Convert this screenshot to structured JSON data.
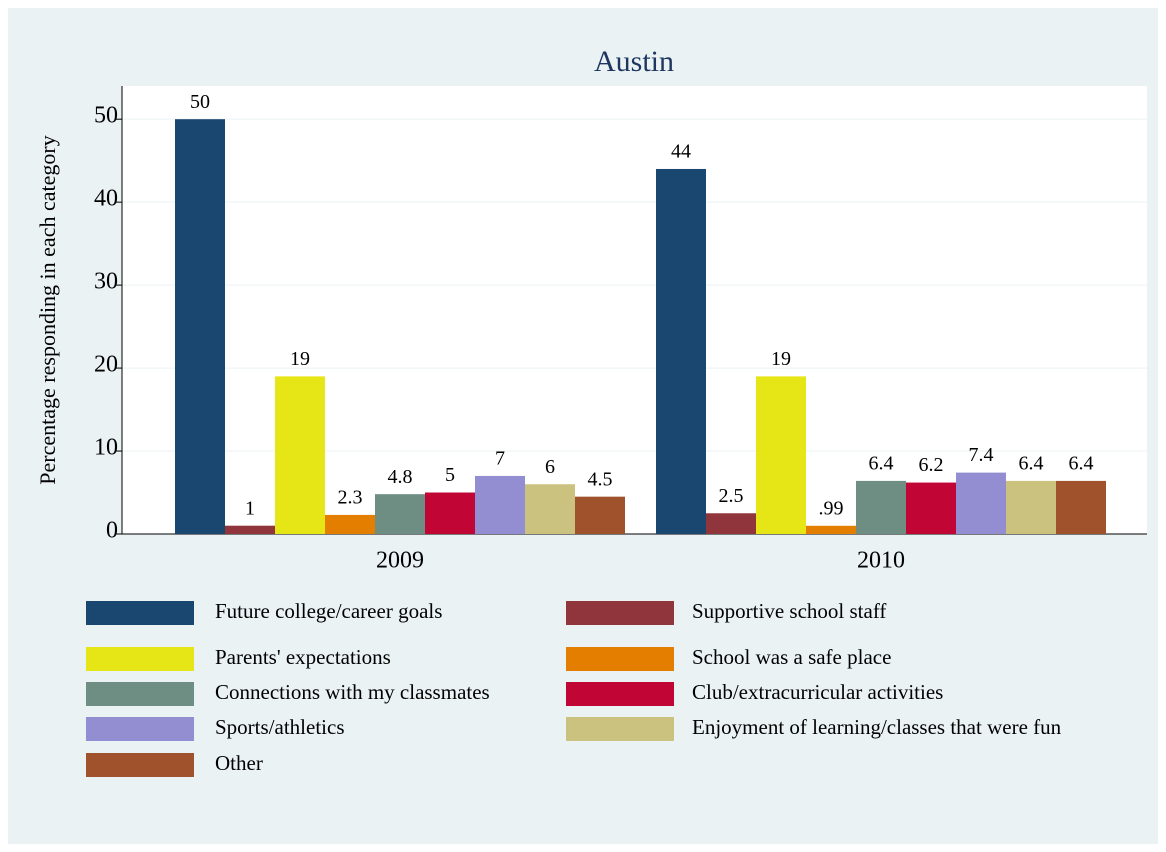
{
  "chart_data": {
    "type": "bar",
    "title": "Austin",
    "y_label": "Percentage responding in each category",
    "categories": [
      "2009",
      "2010"
    ],
    "series": [
      {
        "name": "Future college/career goals",
        "color": "#1a476f",
        "values": [
          50,
          44
        ]
      },
      {
        "name": "Supportive school staff",
        "color": "#90353b",
        "values": [
          1,
          2.5
        ]
      },
      {
        "name": "Parents' expectations",
        "color": "#e6e617",
        "values": [
          19,
          19
        ]
      },
      {
        "name": "School was a safe place",
        "color": "#e37e00",
        "values": [
          2.3,
          0.99
        ],
        "value_labels": [
          "2.3",
          ".99"
        ]
      },
      {
        "name": "Connections with my classmates",
        "color": "#6e8e84",
        "values": [
          4.8,
          6.4
        ]
      },
      {
        "name": "Club/extracurricular activities",
        "color": "#c10534",
        "values": [
          5,
          6.2
        ]
      },
      {
        "name": "Sports/athletics",
        "color": "#938dd2",
        "values": [
          7,
          7.4
        ]
      },
      {
        "name": "Enjoyment of learning/classes that were fun",
        "color": "#cac27e",
        "values": [
          6,
          6.4
        ]
      },
      {
        "name": "Other",
        "color": "#a0522d",
        "values": [
          4.5,
          6.4
        ]
      }
    ],
    "ylim": [
      0,
      54
    ],
    "yticks": [
      0,
      10,
      20,
      30,
      40,
      50
    ],
    "grid": true
  }
}
